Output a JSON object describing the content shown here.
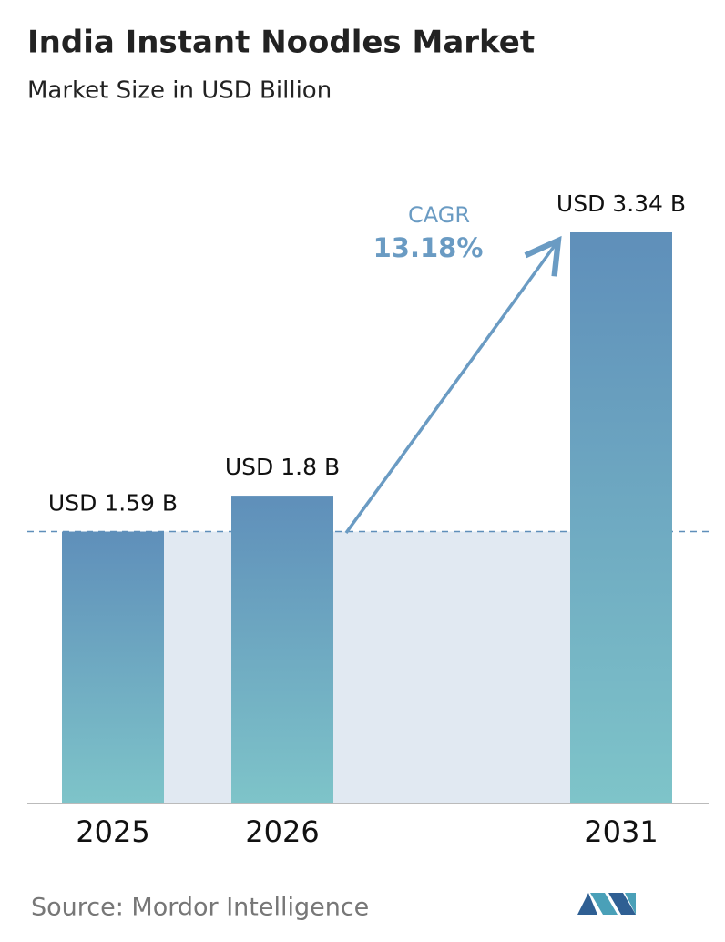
{
  "chart_data": {
    "type": "bar",
    "title": "India Instant Noodles Market",
    "subtitle": "Market Size in USD Billion",
    "categories": [
      "2025",
      "2026",
      "2031"
    ],
    "values": [
      1.59,
      1.8,
      3.34
    ],
    "value_labels": [
      "USD 1.59 B",
      "USD 1.8 B",
      "USD 3.34 B"
    ],
    "annotation": {
      "label": "CAGR",
      "value": "13.18%"
    },
    "source": "Source:  Mordor Intelligence"
  }
}
